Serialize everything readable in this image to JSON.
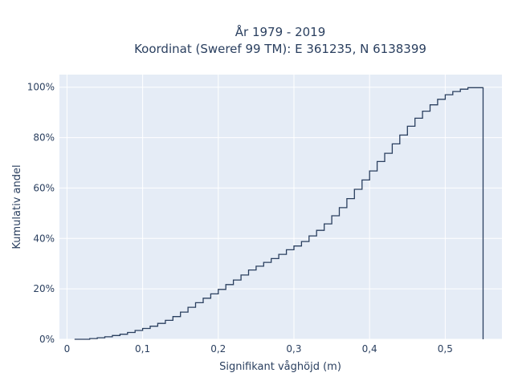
{
  "chart_data": {
    "type": "line",
    "title_line1": "År 1979 - 2019",
    "title_line2": "Koordinat (Sweref 99 TM): E 361235, N 6138399",
    "xlabel": "Signifikant våghöjd (m)",
    "ylabel": "Kumulativ andel",
    "xlim": [
      -0.01,
      0.575
    ],
    "ylim": [
      0,
      1.05
    ],
    "x_ticks": [
      0,
      0.1,
      0.2,
      0.3,
      0.4,
      0.5
    ],
    "x_tick_labels": [
      "0",
      "0,1",
      "0,2",
      "0,3",
      "0,4",
      "0,5"
    ],
    "y_ticks": [
      0,
      0.2,
      0.4,
      0.6,
      0.8,
      1.0
    ],
    "y_tick_labels": [
      "0%",
      "20%",
      "40%",
      "60%",
      "80%",
      "100%"
    ],
    "grid": true,
    "series": [
      {
        "x": [
          0.01,
          0.03,
          0.04,
          0.05,
          0.06,
          0.07,
          0.08,
          0.09,
          0.1,
          0.11,
          0.12,
          0.13,
          0.14,
          0.15,
          0.16,
          0.17,
          0.18,
          0.19,
          0.2,
          0.21,
          0.22,
          0.23,
          0.24,
          0.25,
          0.26,
          0.27,
          0.28,
          0.29,
          0.3,
          0.31,
          0.32,
          0.33,
          0.34,
          0.35,
          0.36,
          0.37,
          0.38,
          0.39,
          0.4,
          0.41,
          0.42,
          0.43,
          0.44,
          0.45,
          0.46,
          0.47,
          0.48,
          0.49,
          0.5,
          0.51,
          0.52,
          0.53,
          0.55
        ],
        "y": [
          0.0,
          0.003,
          0.006,
          0.01,
          0.015,
          0.02,
          0.027,
          0.035,
          0.043,
          0.052,
          0.063,
          0.075,
          0.09,
          0.108,
          0.127,
          0.145,
          0.163,
          0.18,
          0.198,
          0.217,
          0.235,
          0.255,
          0.275,
          0.29,
          0.305,
          0.32,
          0.337,
          0.355,
          0.37,
          0.388,
          0.41,
          0.432,
          0.458,
          0.49,
          0.522,
          0.558,
          0.595,
          0.632,
          0.668,
          0.705,
          0.738,
          0.775,
          0.81,
          0.845,
          0.877,
          0.905,
          0.93,
          0.952,
          0.97,
          0.983,
          0.992,
          0.998,
          1.0
        ],
        "drop_to_zero_at": 0.55
      }
    ]
  }
}
